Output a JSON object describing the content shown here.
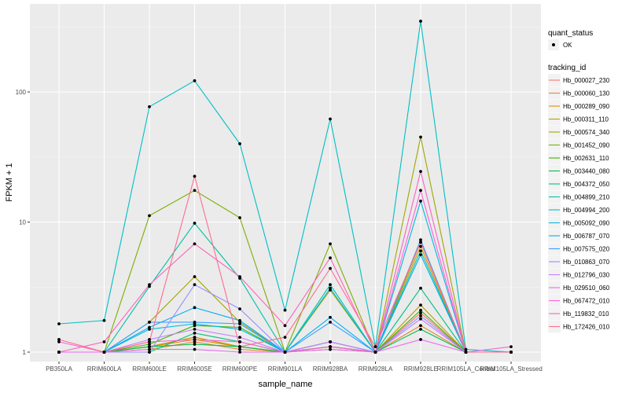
{
  "chart_data": {
    "type": "line",
    "xlabel": "sample_name",
    "ylabel": "FPKM + 1",
    "yscale": "log10",
    "ylim": [
      0.9,
      400
    ],
    "y_ticks": [
      1,
      10,
      100
    ],
    "y_tick_labels": [
      "1",
      "10",
      "100"
    ],
    "grid": true,
    "legend_position": "right",
    "categories": [
      "PB350LA",
      "RRIM600LA",
      "RRIM600LE",
      "RRIM600SE",
      "RRIM600PE",
      "RRIM901LA",
      "RRIM928BA",
      "RRIM928LA",
      "RRIM928LE",
      "RRIM105LA_Control",
      "RRIM105LA_Stressed"
    ],
    "quant_status": {
      "title": "quant_status",
      "entries": [
        "OK"
      ]
    },
    "legend": {
      "title": "tracking_id"
    },
    "series": [
      {
        "name": "Hb_000027_230",
        "color": "#F8766D",
        "values": [
          1.0,
          1.0,
          1.1,
          1.3,
          1.1,
          1.0,
          1.1,
          1.0,
          2.0,
          1.0,
          1.0
        ]
      },
      {
        "name": "Hb_000060_130",
        "color": "#EA8331",
        "values": [
          1.0,
          1.0,
          1.05,
          1.2,
          1.05,
          1.0,
          1.05,
          1.0,
          1.6,
          1.0,
          1.0
        ]
      },
      {
        "name": "Hb_000289_090",
        "color": "#D89000",
        "values": [
          1.0,
          1.0,
          1.1,
          1.25,
          1.1,
          1.0,
          1.1,
          1.0,
          6.5,
          1.0,
          1.0
        ]
      },
      {
        "name": "Hb_000311_110",
        "color": "#C09B00",
        "values": [
          1.0,
          1.0,
          1.1,
          1.3,
          1.1,
          1.0,
          1.1,
          1.0,
          2.3,
          1.0,
          1.0
        ]
      },
      {
        "name": "Hb_000574_340",
        "color": "#A3A500",
        "values": [
          1.0,
          1.0,
          1.7,
          3.8,
          1.7,
          1.0,
          3.0,
          1.0,
          45.0,
          1.0,
          1.0
        ]
      },
      {
        "name": "Hb_001452_090",
        "color": "#7CAE00",
        "values": [
          1.0,
          1.0,
          11.2,
          17.5,
          10.8,
          1.0,
          6.8,
          1.0,
          7.0,
          1.0,
          1.0
        ]
      },
      {
        "name": "Hb_002631_110",
        "color": "#39B600",
        "values": [
          1.0,
          1.0,
          1.15,
          1.6,
          1.55,
          1.0,
          1.2,
          1.0,
          2.1,
          1.0,
          1.0
        ]
      },
      {
        "name": "Hb_003440_080",
        "color": "#00BB4E",
        "values": [
          1.0,
          1.0,
          1.1,
          1.15,
          1.1,
          1.0,
          1.1,
          1.0,
          1.5,
          1.0,
          1.0
        ]
      },
      {
        "name": "Hb_004372_050",
        "color": "#00BF7D",
        "values": [
          1.0,
          1.0,
          1.0,
          1.4,
          1.2,
          1.0,
          1.2,
          1.0,
          3.1,
          1.0,
          1.0
        ]
      },
      {
        "name": "Hb_004899_210",
        "color": "#00C1A3",
        "values": [
          1.0,
          1.0,
          3.2,
          9.8,
          3.7,
          1.0,
          3.3,
          1.0,
          6.0,
          1.0,
          1.0
        ]
      },
      {
        "name": "Hb_004994_200",
        "color": "#00BFC4",
        "values": [
          1.65,
          1.75,
          77.0,
          122.0,
          40.0,
          2.1,
          62.0,
          1.1,
          350.0,
          1.05,
          1.0
        ]
      },
      {
        "name": "Hb_005092_090",
        "color": "#00BAE0",
        "values": [
          1.0,
          1.0,
          1.5,
          1.65,
          1.5,
          1.0,
          3.1,
          1.0,
          14.5,
          1.0,
          1.0
        ]
      },
      {
        "name": "Hb_006787_070",
        "color": "#00B0F6",
        "values": [
          1.0,
          1.0,
          1.55,
          2.2,
          1.75,
          1.0,
          1.85,
          1.0,
          5.6,
          1.0,
          1.0
        ]
      },
      {
        "name": "Hb_007575_020",
        "color": "#35A2FF",
        "values": [
          1.0,
          1.0,
          1.7,
          1.7,
          1.65,
          1.0,
          1.7,
          1.0,
          7.3,
          1.0,
          1.0
        ]
      },
      {
        "name": "Hb_010863_070",
        "color": "#9590FF",
        "values": [
          1.0,
          1.0,
          1.0,
          3.3,
          2.15,
          1.0,
          1.2,
          1.0,
          1.9,
          1.0,
          1.0
        ]
      },
      {
        "name": "Hb_012796_030",
        "color": "#C77CFF",
        "values": [
          1.0,
          1.0,
          1.25,
          1.5,
          1.3,
          1.0,
          1.2,
          1.0,
          1.8,
          1.0,
          1.0
        ]
      },
      {
        "name": "Hb_029510_060",
        "color": "#E76BF3",
        "values": [
          1.0,
          1.0,
          1.05,
          1.05,
          1.0,
          1.0,
          1.05,
          1.0,
          1.25,
          1.0,
          1.0
        ]
      },
      {
        "name": "Hb_067472_010",
        "color": "#FA62DB",
        "values": [
          1.2,
          1.0,
          1.2,
          1.25,
          1.2,
          1.0,
          1.1,
          1.0,
          17.5,
          1.0,
          1.1
        ]
      },
      {
        "name": "Hb_119832_010",
        "color": "#FF62BC",
        "values": [
          1.0,
          1.2,
          3.3,
          6.8,
          3.8,
          1.6,
          5.3,
          1.0,
          24.5,
          1.0,
          1.0
        ]
      },
      {
        "name": "Hb_172426_010",
        "color": "#FF6C91",
        "values": [
          1.25,
          1.0,
          1.2,
          22.5,
          1.1,
          1.3,
          4.4,
          1.1,
          7.0,
          1.0,
          1.0
        ]
      }
    ]
  }
}
